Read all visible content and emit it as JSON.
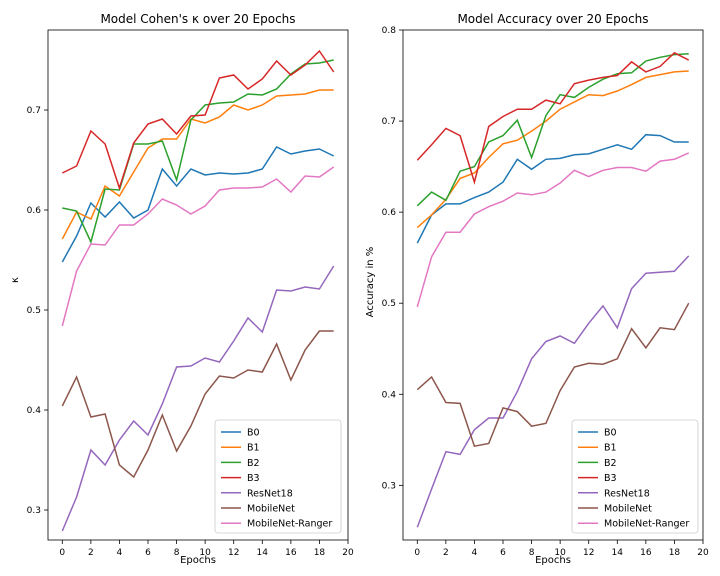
{
  "colors": {
    "B0": "#1f77b4",
    "B1": "#ff7f0e",
    "B2": "#2ca02c",
    "B3": "#d62728",
    "ResNet18": "#9467bd",
    "MobileNet": "#8c564b",
    "MobileNet-Ranger": "#e377c2"
  },
  "chart_data": [
    {
      "type": "line",
      "title": "Model Cohen's κ over 20 Epochs",
      "xlabel": "Epochs",
      "ylabel": "κ",
      "xlim": [
        -1,
        20
      ],
      "ylim": [
        0.27,
        0.78
      ],
      "xticks": [
        "0",
        "2",
        "4",
        "6",
        "8",
        "10",
        "12",
        "14",
        "16",
        "18",
        "20"
      ],
      "yticks": [
        "0.3",
        "0.4",
        "0.5",
        "0.6",
        "0.7"
      ],
      "grid": false,
      "legend": "lower right",
      "x": [
        0,
        1,
        2,
        3,
        4,
        5,
        6,
        7,
        8,
        9,
        10,
        11,
        12,
        13,
        14,
        15,
        16,
        17,
        18,
        19
      ],
      "series": [
        {
          "name": "B0",
          "values": [
            0.548,
            0.574,
            0.607,
            0.593,
            0.608,
            0.592,
            0.6,
            0.641,
            0.624,
            0.641,
            0.635,
            0.637,
            0.636,
            0.637,
            0.641,
            0.663,
            0.656,
            0.659,
            0.661,
            0.654
          ]
        },
        {
          "name": "B1",
          "values": [
            0.571,
            0.598,
            0.591,
            0.624,
            0.614,
            0.638,
            0.662,
            0.671,
            0.671,
            0.691,
            0.687,
            0.693,
            0.705,
            0.7,
            0.705,
            0.714,
            0.715,
            0.716,
            0.72,
            0.72
          ]
        },
        {
          "name": "B2",
          "values": [
            0.602,
            0.599,
            0.568,
            0.621,
            0.62,
            0.666,
            0.666,
            0.669,
            0.63,
            0.69,
            0.705,
            0.707,
            0.708,
            0.716,
            0.715,
            0.721,
            0.736,
            0.746,
            0.747,
            0.75
          ]
        },
        {
          "name": "B3",
          "values": [
            0.637,
            0.644,
            0.679,
            0.666,
            0.622,
            0.667,
            0.686,
            0.691,
            0.676,
            0.694,
            0.695,
            0.732,
            0.735,
            0.721,
            0.731,
            0.749,
            0.735,
            0.745,
            0.759,
            0.738
          ]
        },
        {
          "name": "ResNet18",
          "values": [
            0.279,
            0.313,
            0.36,
            0.345,
            0.37,
            0.389,
            0.375,
            0.406,
            0.443,
            0.444,
            0.452,
            0.448,
            0.469,
            0.492,
            0.478,
            0.52,
            0.519,
            0.523,
            0.521,
            0.544
          ]
        },
        {
          "name": "MobileNet",
          "values": [
            0.404,
            0.433,
            0.393,
            0.396,
            0.345,
            0.333,
            0.36,
            0.395,
            0.359,
            0.384,
            0.416,
            0.434,
            0.432,
            0.44,
            0.438,
            0.466,
            0.43,
            0.46,
            0.479,
            0.479
          ]
        },
        {
          "name": "MobileNet-Ranger",
          "values": [
            0.484,
            0.539,
            0.566,
            0.565,
            0.585,
            0.585,
            0.596,
            0.611,
            0.605,
            0.596,
            0.604,
            0.62,
            0.622,
            0.622,
            0.623,
            0.631,
            0.618,
            0.634,
            0.633,
            0.643
          ]
        }
      ]
    },
    {
      "type": "line",
      "title": "Model Accuracy over 20 Epochs",
      "xlabel": "Epochs",
      "ylabel": "Accuracy in %",
      "xlim": [
        -1,
        20
      ],
      "ylim": [
        0.24,
        0.8
      ],
      "xticks": [
        "0",
        "2",
        "4",
        "6",
        "8",
        "10",
        "12",
        "14",
        "16",
        "18",
        "20"
      ],
      "yticks": [
        "0.3",
        "0.4",
        "0.5",
        "0.6",
        "0.7",
        "0.8"
      ],
      "grid": false,
      "legend": "lower right",
      "x": [
        0,
        1,
        2,
        3,
        4,
        5,
        6,
        7,
        8,
        9,
        10,
        11,
        12,
        13,
        14,
        15,
        16,
        17,
        18,
        19
      ],
      "series": [
        {
          "name": "B0",
          "values": [
            0.566,
            0.597,
            0.609,
            0.609,
            0.616,
            0.622,
            0.633,
            0.658,
            0.647,
            0.658,
            0.659,
            0.663,
            0.664,
            0.669,
            0.674,
            0.669,
            0.685,
            0.684,
            0.677,
            0.677
          ]
        },
        {
          "name": "B1",
          "values": [
            0.583,
            0.597,
            0.614,
            0.637,
            0.643,
            0.66,
            0.675,
            0.679,
            0.689,
            0.7,
            0.713,
            0.721,
            0.729,
            0.728,
            0.733,
            0.74,
            0.748,
            0.751,
            0.754,
            0.755
          ]
        },
        {
          "name": "B2",
          "values": [
            0.607,
            0.622,
            0.613,
            0.645,
            0.65,
            0.677,
            0.684,
            0.701,
            0.66,
            0.706,
            0.729,
            0.726,
            0.737,
            0.746,
            0.752,
            0.753,
            0.766,
            0.77,
            0.773,
            0.774
          ]
        },
        {
          "name": "B3",
          "values": [
            0.657,
            0.674,
            0.692,
            0.684,
            0.633,
            0.694,
            0.705,
            0.713,
            0.713,
            0.723,
            0.719,
            0.741,
            0.745,
            0.748,
            0.75,
            0.765,
            0.754,
            0.76,
            0.775,
            0.767
          ]
        },
        {
          "name": "ResNet18",
          "values": [
            0.254,
            0.296,
            0.337,
            0.334,
            0.361,
            0.374,
            0.374,
            0.403,
            0.439,
            0.458,
            0.464,
            0.456,
            0.478,
            0.497,
            0.473,
            0.516,
            0.533,
            0.534,
            0.535,
            0.552
          ]
        },
        {
          "name": "MobileNet",
          "values": [
            0.405,
            0.419,
            0.391,
            0.39,
            0.343,
            0.346,
            0.385,
            0.381,
            0.365,
            0.368,
            0.404,
            0.43,
            0.434,
            0.433,
            0.439,
            0.472,
            0.451,
            0.473,
            0.471,
            0.5
          ]
        },
        {
          "name": "MobileNet-Ranger",
          "values": [
            0.496,
            0.551,
            0.578,
            0.578,
            0.598,
            0.606,
            0.612,
            0.621,
            0.619,
            0.622,
            0.632,
            0.646,
            0.639,
            0.646,
            0.649,
            0.649,
            0.645,
            0.656,
            0.658,
            0.665
          ]
        }
      ]
    }
  ]
}
